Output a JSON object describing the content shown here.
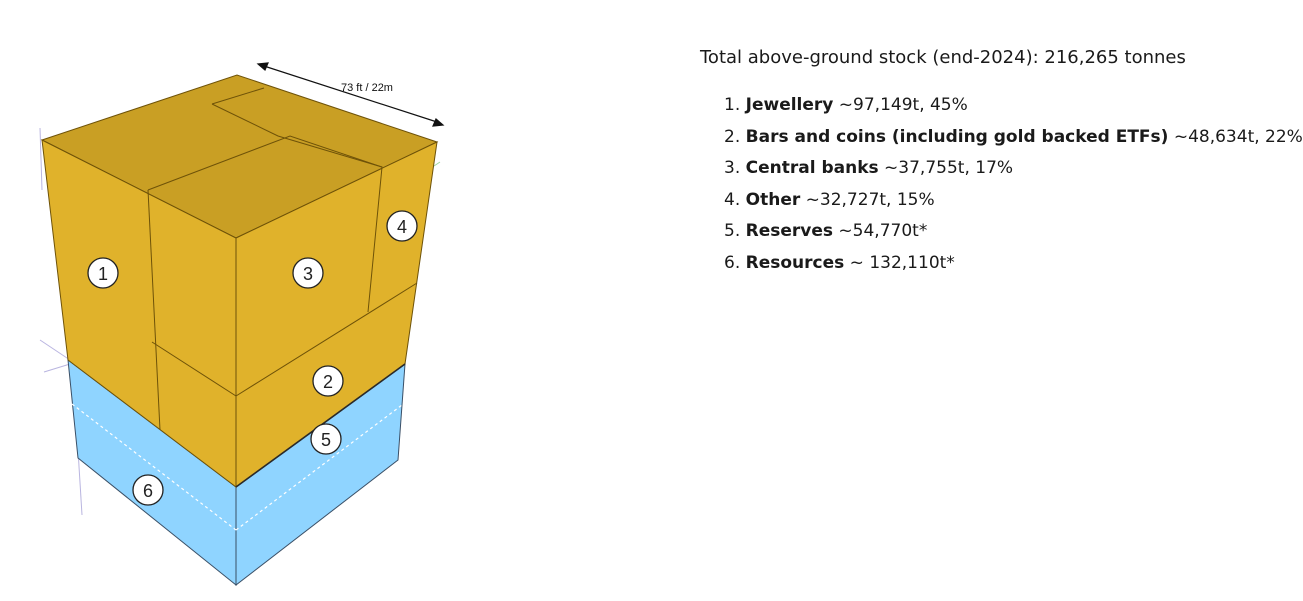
{
  "scale_label": "73 ft / 22m",
  "total_line": "Total above-ground stock (end-2024): 216,265 tonnes",
  "colors": {
    "gold_front": "#e0b22b",
    "gold_top": "#c99f24",
    "gold_edge": "#6e5208",
    "blue_front": "#8fd4ff",
    "blue_edge": "#3a4f66"
  },
  "items": [
    {
      "num": "1.",
      "name": "Jewellery",
      "value": " ~97,149t, 45%"
    },
    {
      "num": "2.",
      "name": "Bars and coins (including gold backed ETFs)",
      "value": " ~48,634t, 22%"
    },
    {
      "num": "3.",
      "name": "Central banks",
      "value": " ~37,755t, 17%"
    },
    {
      "num": "4.",
      "name": "Other",
      "value": " ~32,727t, 15%"
    },
    {
      "num": "5.",
      "name": "Reserves",
      "value": " ~54,770t*"
    },
    {
      "num": "6.",
      "name": "Resources",
      "value": " ~ 132,110t*"
    }
  ],
  "markers": [
    "1",
    "2",
    "3",
    "4",
    "5",
    "6"
  ]
}
